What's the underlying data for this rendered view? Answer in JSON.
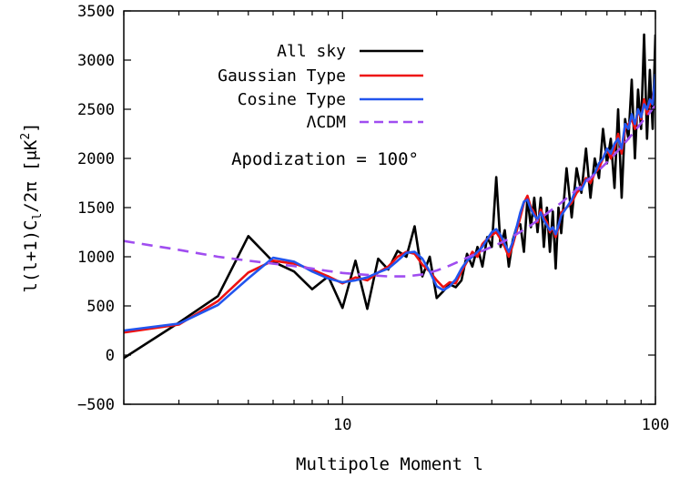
{
  "chart_data": {
    "type": "line",
    "xscale": "log",
    "xlim": [
      2,
      100
    ],
    "ylim": [
      -500,
      3500
    ],
    "xlabel": "Multipole Moment l",
    "ylabel": "l(l+1)C",
    "ylabel_sub": "l",
    "ylabel_tail": "/2π [μK",
    "ylabel_sup": "2",
    "ylabel_close": "]",
    "x_ticks": [
      {
        "value": 10,
        "label": "10"
      },
      {
        "value": 100,
        "label": "100"
      }
    ],
    "y_ticks": [
      {
        "value": -500,
        "label": "−500"
      },
      {
        "value": 0,
        "label": "0"
      },
      {
        "value": 500,
        "label": "500"
      },
      {
        "value": 1000,
        "label": "1000"
      },
      {
        "value": 1500,
        "label": "1500"
      },
      {
        "value": 2000,
        "label": "2000"
      },
      {
        "value": 2500,
        "label": "2500"
      },
      {
        "value": 3000,
        "label": "3000"
      },
      {
        "value": 3500,
        "label": "3500"
      }
    ],
    "annotation": "Apodization = 100°",
    "legend_position": "top-right",
    "series": [
      {
        "name": "All sky",
        "color": "#000000",
        "dash": "",
        "points": [
          [
            2,
            -30
          ],
          [
            3,
            330
          ],
          [
            4,
            600
          ],
          [
            5,
            1210
          ],
          [
            6,
            950
          ],
          [
            7,
            850
          ],
          [
            8,
            670
          ],
          [
            9,
            800
          ],
          [
            10,
            480
          ],
          [
            11,
            960
          ],
          [
            12,
            470
          ],
          [
            13,
            980
          ],
          [
            14,
            870
          ],
          [
            15,
            1060
          ],
          [
            16,
            1000
          ],
          [
            17,
            1310
          ],
          [
            18,
            800
          ],
          [
            19,
            1000
          ],
          [
            20,
            580
          ],
          [
            21,
            650
          ],
          [
            22,
            720
          ],
          [
            23,
            690
          ],
          [
            24,
            760
          ],
          [
            25,
            1030
          ],
          [
            26,
            900
          ],
          [
            27,
            1100
          ],
          [
            28,
            900
          ],
          [
            29,
            1200
          ],
          [
            30,
            1100
          ],
          [
            31,
            1810
          ],
          [
            32,
            1100
          ],
          [
            33,
            1270
          ],
          [
            34,
            900
          ],
          [
            35,
            1170
          ],
          [
            36,
            1300
          ],
          [
            37,
            1330
          ],
          [
            38,
            1050
          ],
          [
            39,
            1600
          ],
          [
            40,
            1300
          ],
          [
            41,
            1600
          ],
          [
            42,
            1250
          ],
          [
            43,
            1600
          ],
          [
            44,
            1100
          ],
          [
            45,
            1500
          ],
          [
            46,
            1050
          ],
          [
            47,
            1460
          ],
          [
            48,
            880
          ],
          [
            49,
            1500
          ],
          [
            50,
            1240
          ],
          [
            52,
            1900
          ],
          [
            54,
            1400
          ],
          [
            56,
            1900
          ],
          [
            58,
            1650
          ],
          [
            60,
            2100
          ],
          [
            62,
            1600
          ],
          [
            64,
            2000
          ],
          [
            66,
            1800
          ],
          [
            68,
            2300
          ],
          [
            70,
            1950
          ],
          [
            72,
            2200
          ],
          [
            74,
            1700
          ],
          [
            76,
            2500
          ],
          [
            78,
            1600
          ],
          [
            80,
            2400
          ],
          [
            82,
            2200
          ],
          [
            84,
            2800
          ],
          [
            86,
            2000
          ],
          [
            88,
            2700
          ],
          [
            90,
            2300
          ],
          [
            92,
            3260
          ],
          [
            94,
            2200
          ],
          [
            96,
            2900
          ],
          [
            98,
            2300
          ],
          [
            100,
            3260
          ]
        ]
      },
      {
        "name": "Gaussian Type",
        "color": "#ee1111",
        "dash": "",
        "points": [
          [
            2,
            230
          ],
          [
            3,
            310
          ],
          [
            4,
            550
          ],
          [
            5,
            840
          ],
          [
            6,
            960
          ],
          [
            7,
            930
          ],
          [
            8,
            870
          ],
          [
            9,
            800
          ],
          [
            10,
            730
          ],
          [
            11,
            790
          ],
          [
            12,
            760
          ],
          [
            13,
            840
          ],
          [
            14,
            900
          ],
          [
            15,
            1000
          ],
          [
            16,
            1050
          ],
          [
            17,
            1030
          ],
          [
            18,
            920
          ],
          [
            19,
            850
          ],
          [
            20,
            760
          ],
          [
            21,
            690
          ],
          [
            22,
            740
          ],
          [
            23,
            730
          ],
          [
            24,
            850
          ],
          [
            25,
            950
          ],
          [
            26,
            1050
          ],
          [
            27,
            1000
          ],
          [
            28,
            1130
          ],
          [
            29,
            1180
          ],
          [
            30,
            1220
          ],
          [
            31,
            1250
          ],
          [
            32,
            1180
          ],
          [
            33,
            1100
          ],
          [
            34,
            1000
          ],
          [
            35,
            1120
          ],
          [
            36,
            1260
          ],
          [
            37,
            1400
          ],
          [
            38,
            1550
          ],
          [
            39,
            1620
          ],
          [
            40,
            1500
          ],
          [
            41,
            1450
          ],
          [
            42,
            1350
          ],
          [
            43,
            1480
          ],
          [
            44,
            1400
          ],
          [
            45,
            1350
          ],
          [
            46,
            1250
          ],
          [
            47,
            1300
          ],
          [
            48,
            1200
          ],
          [
            49,
            1300
          ],
          [
            50,
            1450
          ],
          [
            52,
            1500
          ],
          [
            54,
            1550
          ],
          [
            56,
            1650
          ],
          [
            58,
            1700
          ],
          [
            60,
            1800
          ],
          [
            62,
            1750
          ],
          [
            64,
            1850
          ],
          [
            66,
            1900
          ],
          [
            68,
            2000
          ],
          [
            70,
            2100
          ],
          [
            72,
            2000
          ],
          [
            74,
            2100
          ],
          [
            76,
            2250
          ],
          [
            78,
            2050
          ],
          [
            80,
            2300
          ],
          [
            82,
            2350
          ],
          [
            84,
            2400
          ],
          [
            86,
            2300
          ],
          [
            88,
            2500
          ],
          [
            90,
            2400
          ],
          [
            92,
            2600
          ],
          [
            94,
            2450
          ],
          [
            96,
            2550
          ],
          [
            98,
            2600
          ],
          [
            100,
            2800
          ]
        ]
      },
      {
        "name": "Cosine Type",
        "color": "#2255ee",
        "dash": "",
        "points": [
          [
            2,
            250
          ],
          [
            3,
            320
          ],
          [
            4,
            510
          ],
          [
            5,
            780
          ],
          [
            6,
            990
          ],
          [
            7,
            950
          ],
          [
            8,
            850
          ],
          [
            9,
            780
          ],
          [
            10,
            740
          ],
          [
            11,
            760
          ],
          [
            12,
            790
          ],
          [
            13,
            840
          ],
          [
            14,
            880
          ],
          [
            15,
            960
          ],
          [
            16,
            1040
          ],
          [
            17,
            1050
          ],
          [
            18,
            980
          ],
          [
            19,
            850
          ],
          [
            20,
            700
          ],
          [
            21,
            660
          ],
          [
            22,
            700
          ],
          [
            23,
            770
          ],
          [
            24,
            880
          ],
          [
            25,
            960
          ],
          [
            26,
            1000
          ],
          [
            27,
            1050
          ],
          [
            28,
            1100
          ],
          [
            29,
            1180
          ],
          [
            30,
            1250
          ],
          [
            31,
            1280
          ],
          [
            32,
            1220
          ],
          [
            33,
            1130
          ],
          [
            34,
            1050
          ],
          [
            35,
            1150
          ],
          [
            36,
            1300
          ],
          [
            37,
            1450
          ],
          [
            38,
            1560
          ],
          [
            39,
            1580
          ],
          [
            40,
            1480
          ],
          [
            41,
            1420
          ],
          [
            42,
            1380
          ],
          [
            43,
            1450
          ],
          [
            44,
            1370
          ],
          [
            45,
            1320
          ],
          [
            46,
            1270
          ],
          [
            47,
            1300
          ],
          [
            48,
            1230
          ],
          [
            49,
            1320
          ],
          [
            50,
            1420
          ],
          [
            52,
            1500
          ],
          [
            54,
            1580
          ],
          [
            56,
            1700
          ],
          [
            58,
            1680
          ],
          [
            60,
            1780
          ],
          [
            62,
            1800
          ],
          [
            64,
            1850
          ],
          [
            66,
            1950
          ],
          [
            68,
            2000
          ],
          [
            70,
            2100
          ],
          [
            72,
            2050
          ],
          [
            74,
            2150
          ],
          [
            76,
            2200
          ],
          [
            78,
            2100
          ],
          [
            80,
            2350
          ],
          [
            82,
            2300
          ],
          [
            84,
            2450
          ],
          [
            86,
            2350
          ],
          [
            88,
            2500
          ],
          [
            90,
            2420
          ],
          [
            92,
            2550
          ],
          [
            94,
            2500
          ],
          [
            96,
            2600
          ],
          [
            98,
            2550
          ],
          [
            100,
            2860
          ]
        ]
      },
      {
        "name": "ΛCDM",
        "color": "#a04df0",
        "dash": "12,8",
        "points": [
          [
            2,
            1160
          ],
          [
            3,
            1070
          ],
          [
            4,
            1000
          ],
          [
            5,
            960
          ],
          [
            6,
            930
          ],
          [
            7,
            905
          ],
          [
            8,
            880
          ],
          [
            9,
            855
          ],
          [
            10,
            835
          ],
          [
            12,
            815
          ],
          [
            14,
            800
          ],
          [
            16,
            800
          ],
          [
            18,
            820
          ],
          [
            20,
            860
          ],
          [
            22,
            910
          ],
          [
            25,
            990
          ],
          [
            28,
            1060
          ],
          [
            30,
            1100
          ],
          [
            33,
            1160
          ],
          [
            36,
            1230
          ],
          [
            40,
            1320
          ],
          [
            45,
            1440
          ],
          [
            50,
            1550
          ],
          [
            55,
            1660
          ],
          [
            60,
            1760
          ],
          [
            65,
            1860
          ],
          [
            70,
            1960
          ],
          [
            75,
            2060
          ],
          [
            80,
            2160
          ],
          [
            85,
            2260
          ],
          [
            90,
            2360
          ],
          [
            95,
            2450
          ],
          [
            100,
            2540
          ]
        ]
      }
    ]
  }
}
